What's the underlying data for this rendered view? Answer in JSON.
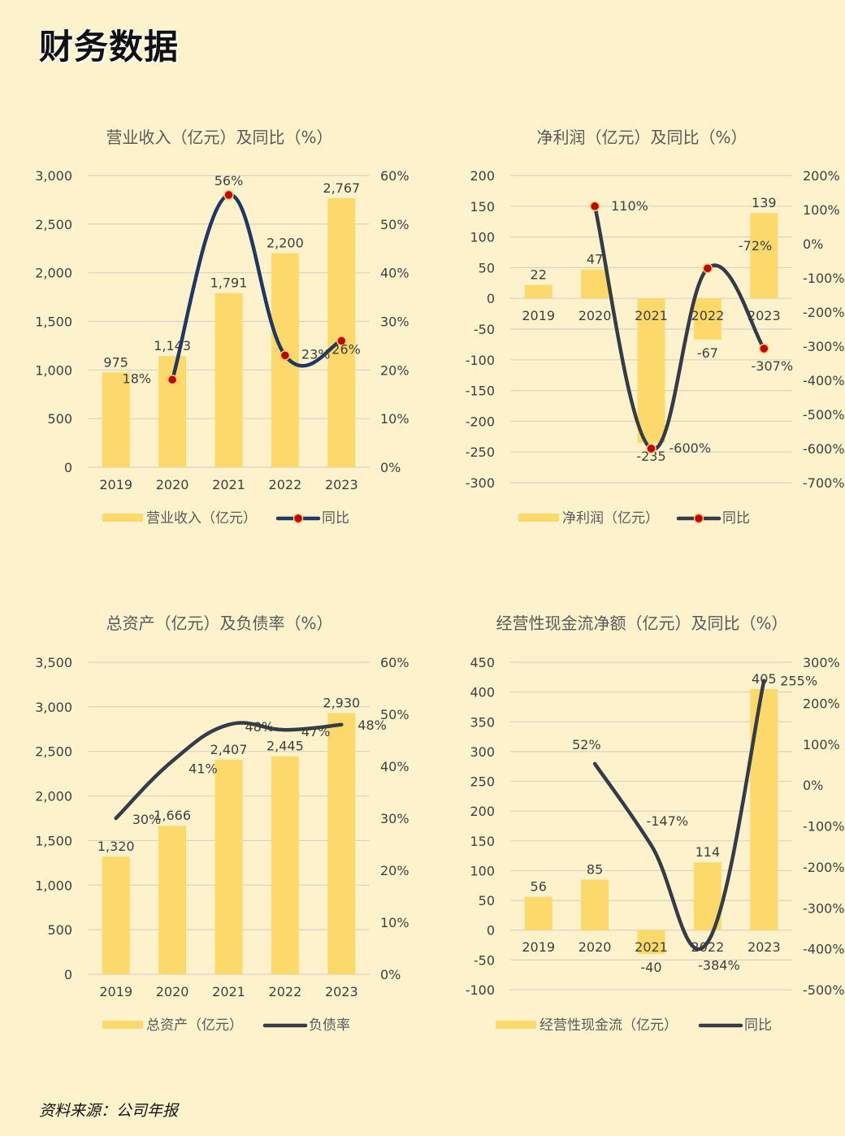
{
  "page": {
    "title": "财务数据",
    "source": "资料来源：公司年报"
  },
  "colors": {
    "bar": "#fcd96a",
    "line_navy": "#1f3864",
    "line_dark": "#333c48",
    "marker": "#c00000",
    "grid": "#d9d3c2"
  },
  "chart_data": [
    {
      "type": "bar+line",
      "title": "营业收入（亿元）及同比（%）",
      "categories": [
        "2019",
        "2020",
        "2021",
        "2022",
        "2023"
      ],
      "bar": {
        "name": "营业收入（亿元）",
        "values": [
          975,
          1143,
          1791,
          2200,
          2767
        ],
        "labels": [
          "975",
          "1,143",
          "1,791",
          "2,200",
          "2,767"
        ]
      },
      "line": {
        "name": "同比",
        "values": [
          null,
          18,
          56,
          23,
          26
        ],
        "labels": [
          "",
          "18%",
          "56%",
          "23%",
          "26%"
        ],
        "markers": true,
        "color": "navy"
      },
      "y_left": {
        "min": 0,
        "max": 3000,
        "ticks": [
          0,
          500,
          1000,
          1500,
          2000,
          2500,
          3000
        ],
        "tick_labels": [
          "0",
          "500",
          "1,000",
          "1,500",
          "2,000",
          "2,500",
          "3,000"
        ]
      },
      "y_right": {
        "min": 0,
        "max": 60,
        "ticks": [
          0,
          10,
          20,
          30,
          40,
          50,
          60
        ],
        "tick_labels": [
          "0%",
          "10%",
          "20%",
          "30%",
          "40%",
          "50%",
          "60%"
        ]
      },
      "grid": true,
      "legend": "bottom"
    },
    {
      "type": "bar+line",
      "title": "净利润（亿元）及同比（%）",
      "categories": [
        "2019",
        "2020",
        "2021",
        "2022",
        "2023"
      ],
      "bar": {
        "name": "净利润（亿元）",
        "values": [
          22,
          47,
          -235,
          -67,
          139
        ],
        "labels": [
          "22",
          "47",
          "-235",
          "-67",
          "139"
        ]
      },
      "line": {
        "name": "同比",
        "values": [
          null,
          110,
          -600,
          -72,
          -307
        ],
        "labels": [
          "",
          "110%",
          "-600%",
          "-72%",
          "-307%"
        ],
        "markers": true,
        "color": "dark"
      },
      "y_left": {
        "min": -300,
        "max": 200,
        "ticks": [
          -300,
          -250,
          -200,
          -150,
          -100,
          -50,
          0,
          50,
          100,
          150,
          200
        ],
        "tick_labels": [
          "-300",
          "-250",
          "-200",
          "-150",
          "-100",
          "-50",
          "0",
          "50",
          "100",
          "150",
          "200"
        ]
      },
      "y_right": {
        "min": -700,
        "max": 200,
        "ticks": [
          -700,
          -600,
          -500,
          -400,
          -300,
          -200,
          -100,
          0,
          100,
          200
        ],
        "tick_labels": [
          "-700%",
          "-600%",
          "-500%",
          "-400%",
          "-300%",
          "-200%",
          "-100%",
          "0%",
          "100%",
          "200%"
        ]
      },
      "grid": true,
      "legend": "bottom"
    },
    {
      "type": "bar+line",
      "title": "总资产（亿元）及负债率（%）",
      "categories": [
        "2019",
        "2020",
        "2021",
        "2022",
        "2023"
      ],
      "bar": {
        "name": "总资产（亿元）",
        "values": [
          1320,
          1666,
          2407,
          2445,
          2930
        ],
        "labels": [
          "1,320",
          "1,666",
          "2,407",
          "2,445",
          "2,930"
        ]
      },
      "line": {
        "name": "负债率",
        "values": [
          30,
          41,
          48,
          47,
          48
        ],
        "labels": [
          "30%",
          "41%",
          "48%",
          "47%",
          "48%"
        ],
        "markers": false,
        "color": "dark"
      },
      "y_left": {
        "min": 0,
        "max": 3500,
        "ticks": [
          0,
          500,
          1000,
          1500,
          2000,
          2500,
          3000,
          3500
        ],
        "tick_labels": [
          "0",
          "500",
          "1,000",
          "1,500",
          "2,000",
          "2,500",
          "3,000",
          "3,500"
        ]
      },
      "y_right": {
        "min": 0,
        "max": 60,
        "ticks": [
          0,
          10,
          20,
          30,
          40,
          50,
          60
        ],
        "tick_labels": [
          "0%",
          "10%",
          "20%",
          "30%",
          "40%",
          "50%",
          "60%"
        ]
      },
      "grid": true,
      "legend": "bottom"
    },
    {
      "type": "bar+line",
      "title": "经营性现金流净额（亿元）及同比（%）",
      "categories": [
        "2019",
        "2020",
        "2021",
        "2022",
        "2023"
      ],
      "bar": {
        "name": "经营性现金流（亿元）",
        "values": [
          56,
          85,
          -40,
          114,
          405
        ],
        "labels": [
          "56",
          "85",
          "-40",
          "114",
          "405"
        ]
      },
      "line": {
        "name": "同比",
        "values": [
          null,
          52,
          -147,
          -384,
          255
        ],
        "labels": [
          "",
          "52%",
          "-147%",
          "-384%",
          "255%"
        ],
        "markers": false,
        "color": "dark"
      },
      "y_left": {
        "min": -100,
        "max": 450,
        "ticks": [
          -100,
          -50,
          0,
          50,
          100,
          150,
          200,
          250,
          300,
          350,
          400,
          450
        ],
        "tick_labels": [
          "-100",
          "-50",
          "0",
          "50",
          "100",
          "150",
          "200",
          "250",
          "300",
          "350",
          "400",
          "450"
        ]
      },
      "y_right": {
        "min": -500,
        "max": 300,
        "ticks": [
          -500,
          -400,
          -300,
          -200,
          -100,
          0,
          100,
          200,
          300
        ],
        "tick_labels": [
          "-500%",
          "-400%",
          "-300%",
          "-200%",
          "-100%",
          "0%",
          "100%",
          "200%",
          "300%"
        ]
      },
      "grid": true,
      "legend": "bottom"
    }
  ]
}
